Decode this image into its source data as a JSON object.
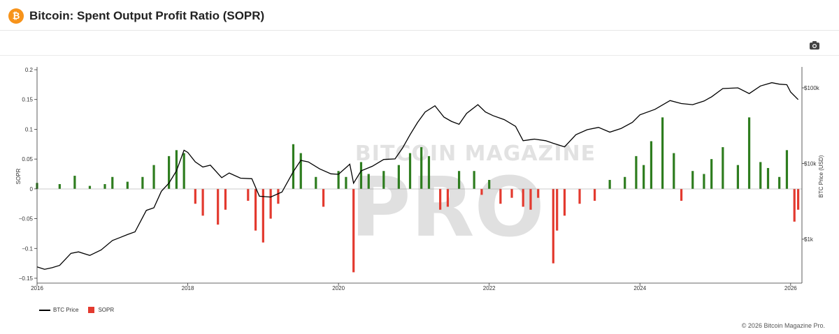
{
  "header": {
    "logo_symbol": "₿",
    "title": "Bitcoin: Spent Output Profit Ratio (SOPR)"
  },
  "toolbar": {
    "camera_icon": "camera-icon"
  },
  "watermark": {
    "line1": "BITCOIN MAGAZINE",
    "line2": "PRO"
  },
  "legend": {
    "btc_label": "BTC Price",
    "sopr_label": "SOPR"
  },
  "footer": {
    "copyright": "© 2026 Bitcoin Magazine Pro."
  },
  "colors": {
    "positive": "#2e7d1f",
    "negative": "#e33a2f",
    "price": "#000000",
    "brand": "#f7931a"
  },
  "chart_data": {
    "type": "bar",
    "title": "Bitcoin: Spent Output Profit Ratio (SOPR)",
    "ylabel": "SOPR",
    "y2label": "BTC Price (USD)",
    "ylim": [
      -0.15,
      0.2
    ],
    "y2_log": true,
    "y2_ticks": [
      {
        "v": 1000,
        "label": "$1k"
      },
      {
        "v": 10000,
        "label": "$10k"
      },
      {
        "v": 100000,
        "label": "$100k"
      }
    ],
    "y_ticks": [
      0.2,
      0.15,
      0.1,
      0.05,
      0,
      -0.05,
      -0.1,
      -0.15
    ],
    "y_tick_labels": [
      "0.2",
      "0.15",
      "0.1",
      "0.05",
      "0",
      "−0.05",
      "−0.1",
      "−0.15"
    ],
    "x_ticks": [
      2016,
      2018,
      2020,
      2022,
      2024,
      2026
    ],
    "x_tick_labels": [
      "2016",
      "2018",
      "2020",
      "2022",
      "2024",
      "2026"
    ],
    "xlim": [
      2016.0,
      2026.15
    ],
    "grid": false,
    "legend_position": "bottom-left",
    "series": [
      {
        "name": "BTC Price",
        "kind": "line",
        "x": [
          2016.0,
          2016.1,
          2016.2,
          2016.3,
          2016.45,
          2016.55,
          2016.7,
          2016.85,
          2017.0,
          2017.1,
          2017.2,
          2017.3,
          2017.45,
          2017.55,
          2017.65,
          2017.75,
          2017.85,
          2017.95,
          2018.0,
          2018.1,
          2018.2,
          2018.3,
          2018.45,
          2018.55,
          2018.7,
          2018.85,
          2018.95,
          2019.1,
          2019.25,
          2019.4,
          2019.5,
          2019.6,
          2019.75,
          2019.9,
          2020.0,
          2020.15,
          2020.2,
          2020.3,
          2020.45,
          2020.6,
          2020.75,
          2020.85,
          2020.95,
          2021.05,
          2021.15,
          2021.28,
          2021.4,
          2021.5,
          2021.6,
          2021.7,
          2021.85,
          2021.95,
          2022.05,
          2022.2,
          2022.35,
          2022.45,
          2022.6,
          2022.75,
          2022.85,
          2023.0,
          2023.15,
          2023.3,
          2023.45,
          2023.6,
          2023.75,
          2023.9,
          2024.0,
          2024.2,
          2024.4,
          2024.55,
          2024.7,
          2024.85,
          2024.95,
          2025.1,
          2025.3,
          2025.45,
          2025.6,
          2025.75,
          2025.85,
          2025.95,
          2026.0,
          2026.1
        ],
        "values": [
          430,
          400,
          420,
          450,
          650,
          680,
          610,
          720,
          960,
          1050,
          1150,
          1250,
          2400,
          2600,
          4300,
          5500,
          8000,
          15000,
          14000,
          10500,
          9000,
          9500,
          6500,
          7500,
          6400,
          6300,
          3700,
          3600,
          4200,
          7800,
          11000,
          10500,
          8500,
          7300,
          7200,
          9800,
          5500,
          8000,
          9200,
          11300,
          11500,
          16000,
          24000,
          35000,
          48000,
          58000,
          41000,
          36000,
          33000,
          46000,
          60000,
          48000,
          43000,
          38000,
          31000,
          20000,
          21000,
          20000,
          18500,
          16600,
          24000,
          28000,
          30000,
          26000,
          29000,
          35000,
          44000,
          52000,
          68000,
          62000,
          60000,
          67000,
          76000,
          98000,
          100000,
          84000,
          106000,
          117000,
          112000,
          110000,
          88000,
          70000
        ]
      },
      {
        "name": "SOPR",
        "kind": "bar",
        "x": [
          2016.0,
          2016.3,
          2016.5,
          2016.7,
          2016.9,
          2017.0,
          2017.2,
          2017.4,
          2017.55,
          2017.75,
          2017.85,
          2017.95,
          2018.1,
          2018.2,
          2018.4,
          2018.5,
          2018.8,
          2018.9,
          2019.0,
          2019.1,
          2019.2,
          2019.4,
          2019.5,
          2019.7,
          2019.8,
          2020.0,
          2020.1,
          2020.2,
          2020.3,
          2020.4,
          2020.6,
          2020.8,
          2020.95,
          2021.1,
          2021.2,
          2021.35,
          2021.45,
          2021.6,
          2021.8,
          2021.9,
          2022.0,
          2022.15,
          2022.3,
          2022.45,
          2022.55,
          2022.65,
          2022.85,
          2022.9,
          2023.0,
          2023.2,
          2023.4,
          2023.6,
          2023.8,
          2023.95,
          2024.05,
          2024.15,
          2024.3,
          2024.45,
          2024.55,
          2024.7,
          2024.85,
          2024.95,
          2025.1,
          2025.3,
          2025.45,
          2025.6,
          2025.7,
          2025.85,
          2025.95,
          2026.05,
          2026.1
        ],
        "values": [
          0.01,
          0.008,
          0.022,
          0.005,
          0.008,
          0.02,
          0.012,
          0.02,
          0.04,
          0.055,
          0.065,
          0.06,
          -0.025,
          -0.045,
          -0.06,
          -0.035,
          -0.02,
          -0.07,
          -0.09,
          -0.05,
          -0.025,
          0.075,
          0.06,
          0.02,
          -0.03,
          0.03,
          0.02,
          -0.14,
          0.045,
          0.025,
          0.03,
          0.04,
          0.06,
          0.07,
          0.055,
          -0.035,
          -0.03,
          0.03,
          0.03,
          -0.01,
          0.015,
          -0.025,
          -0.015,
          -0.03,
          -0.035,
          -0.015,
          -0.125,
          -0.07,
          -0.045,
          -0.025,
          -0.02,
          0.015,
          0.02,
          0.055,
          0.04,
          0.08,
          0.12,
          0.06,
          -0.02,
          0.03,
          0.025,
          0.05,
          0.07,
          0.04,
          0.12,
          0.045,
          0.035,
          0.02,
          0.065,
          -0.055,
          -0.035
        ]
      }
    ]
  }
}
